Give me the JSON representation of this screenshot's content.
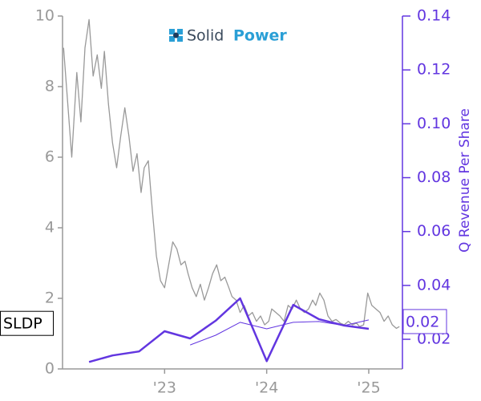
{
  "chart_data": {
    "type": "line",
    "logo": {
      "text_1": "Solid",
      "text_2": "Power"
    },
    "y2label": "Q Revenue Per Share",
    "xlim": [
      2022.0,
      2025.33
    ],
    "xticks": [
      {
        "value": 2023,
        "label": "'23"
      },
      {
        "value": 2024,
        "label": "'24"
      },
      {
        "value": 2025,
        "label": "'25"
      }
    ],
    "ylim": [
      0,
      10
    ],
    "yticks": [
      0,
      2,
      4,
      6,
      8,
      10
    ],
    "y2lim": [
      0.009,
      0.14
    ],
    "y2ticks": [
      0.02,
      0.04,
      0.06,
      0.08,
      {
        "value": 0.1,
        "label": "0.10"
      },
      0.12,
      0.14
    ],
    "left_color": "#999999",
    "right_color": "#6236e0",
    "series": [
      {
        "name": "SLDP",
        "color": "#999999",
        "axis": "y",
        "x": [
          2022.01,
          2022.04,
          2022.09,
          2022.14,
          2022.18,
          2022.22,
          2022.26,
          2022.3,
          2022.34,
          2022.38,
          2022.41,
          2022.45,
          2022.49,
          2022.53,
          2022.57,
          2022.61,
          2022.65,
          2022.69,
          2022.73,
          2022.77,
          2022.8,
          2022.84,
          2022.88,
          2022.92,
          2022.96,
          2023.0,
          2023.04,
          2023.08,
          2023.12,
          2023.16,
          2023.2,
          2023.23,
          2023.27,
          2023.31,
          2023.35,
          2023.39,
          2023.43,
          2023.47,
          2023.51,
          2023.55,
          2023.59,
          2023.63,
          2023.66,
          2023.7,
          2023.74,
          2023.78,
          2023.82,
          2023.86,
          2023.9,
          2023.94,
          2023.98,
          2024.02,
          2024.05,
          2024.09,
          2024.13,
          2024.17,
          2024.21,
          2024.25,
          2024.29,
          2024.33,
          2024.37,
          2024.41,
          2024.45,
          2024.48,
          2024.52,
          2024.56,
          2024.6,
          2024.64,
          2024.68,
          2024.72,
          2024.76,
          2024.8,
          2024.84,
          2024.88,
          2024.91,
          2024.95,
          2024.99,
          2025.03,
          2025.07,
          2025.11,
          2025.15,
          2025.19,
          2025.23,
          2025.27,
          2025.3
        ],
        "values": [
          9.1,
          7.95,
          6.0,
          8.4,
          7.0,
          9.1,
          9.9,
          8.3,
          8.9,
          7.95,
          9.0,
          7.5,
          6.4,
          5.7,
          6.6,
          7.4,
          6.6,
          5.6,
          6.1,
          5.0,
          5.7,
          5.9,
          4.5,
          3.2,
          2.5,
          2.3,
          2.95,
          3.6,
          3.4,
          2.95,
          3.05,
          2.7,
          2.3,
          2.05,
          2.4,
          1.95,
          2.3,
          2.7,
          2.95,
          2.5,
          2.6,
          2.3,
          2.05,
          1.95,
          1.6,
          1.8,
          1.5,
          1.6,
          1.35,
          1.5,
          1.25,
          1.35,
          1.7,
          1.6,
          1.5,
          1.35,
          1.8,
          1.7,
          1.95,
          1.7,
          1.6,
          1.7,
          1.95,
          1.8,
          2.15,
          1.95,
          1.5,
          1.35,
          1.4,
          1.3,
          1.25,
          1.35,
          1.25,
          1.3,
          1.2,
          1.25,
          2.15,
          1.8,
          1.7,
          1.6,
          1.35,
          1.5,
          1.25,
          1.15,
          1.2
        ]
      },
      {
        "color": "#6236e0",
        "axis": "y2",
        "x": [
          2022.26,
          2022.49,
          2022.75,
          2023.0,
          2023.25,
          2023.5,
          2023.74,
          2024.0,
          2024.26,
          2024.51,
          2024.76,
          2025.0
        ],
        "values": [
          0.0116,
          0.014,
          0.0155,
          0.023,
          0.0203,
          0.0269,
          0.0352,
          0.0119,
          0.0328,
          0.0275,
          0.0251,
          0.0239
        ],
        "value_labels": [
          null,
          null,
          null,
          null,
          null,
          null,
          null,
          null,
          null,
          null,
          null,
          "0.02"
        ]
      },
      {
        "color": "#6236e0",
        "axis": "y2",
        "x": [
          2023.25,
          2023.5,
          2023.74,
          2024.0,
          2024.26,
          2024.51,
          2024.76,
          2025.0
        ],
        "values": [
          0.0179,
          0.0215,
          0.0263,
          0.0239,
          0.0263,
          0.0266,
          0.0251,
          0.0272
        ]
      }
    ]
  }
}
